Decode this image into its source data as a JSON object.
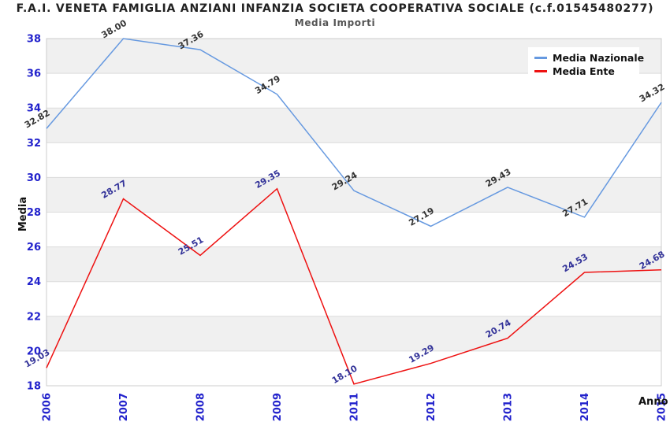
{
  "title": "F.A.I. VENETA FAMIGLIA ANZIANI INFANZIA SOCIETA COOPERATIVA SOCIALE (c.f.01545480277)",
  "subtitle": "Media Importi",
  "chart_data": {
    "type": "line",
    "title": "F.A.I. VENETA FAMIGLIA ANZIANI INFANZIA SOCIETA COOPERATIVA SOCIALE (c.f.01545480277)",
    "subtitle": "Media Importi",
    "categories": [
      "2006",
      "2007",
      "2008",
      "2009",
      "2011",
      "2012",
      "2013",
      "2014",
      "2015"
    ],
    "series": [
      {
        "name": "Media Nazionale",
        "color": "#6699e0",
        "label_color": "#333333",
        "values": [
          32.82,
          38.0,
          37.36,
          34.79,
          29.24,
          27.19,
          29.43,
          27.71,
          34.32
        ]
      },
      {
        "name": "Media Ente",
        "color": "#ee1111",
        "label_color": "#333399",
        "values": [
          19.03,
          28.77,
          25.51,
          29.35,
          18.1,
          19.29,
          20.74,
          24.53,
          24.68
        ]
      }
    ],
    "xlabel": "Anno",
    "ylabel": "Media",
    "ylim": [
      18,
      38
    ],
    "ytick_step": 2,
    "grid": true,
    "alternating_bands": true,
    "legend_position": "top-right",
    "colors": {
      "axis_text": "#2222cc",
      "band_fill": "#f0f0f0",
      "grid_line": "#dcdcdc",
      "plot_border": "#cccccc",
      "background": "#ffffff"
    }
  }
}
